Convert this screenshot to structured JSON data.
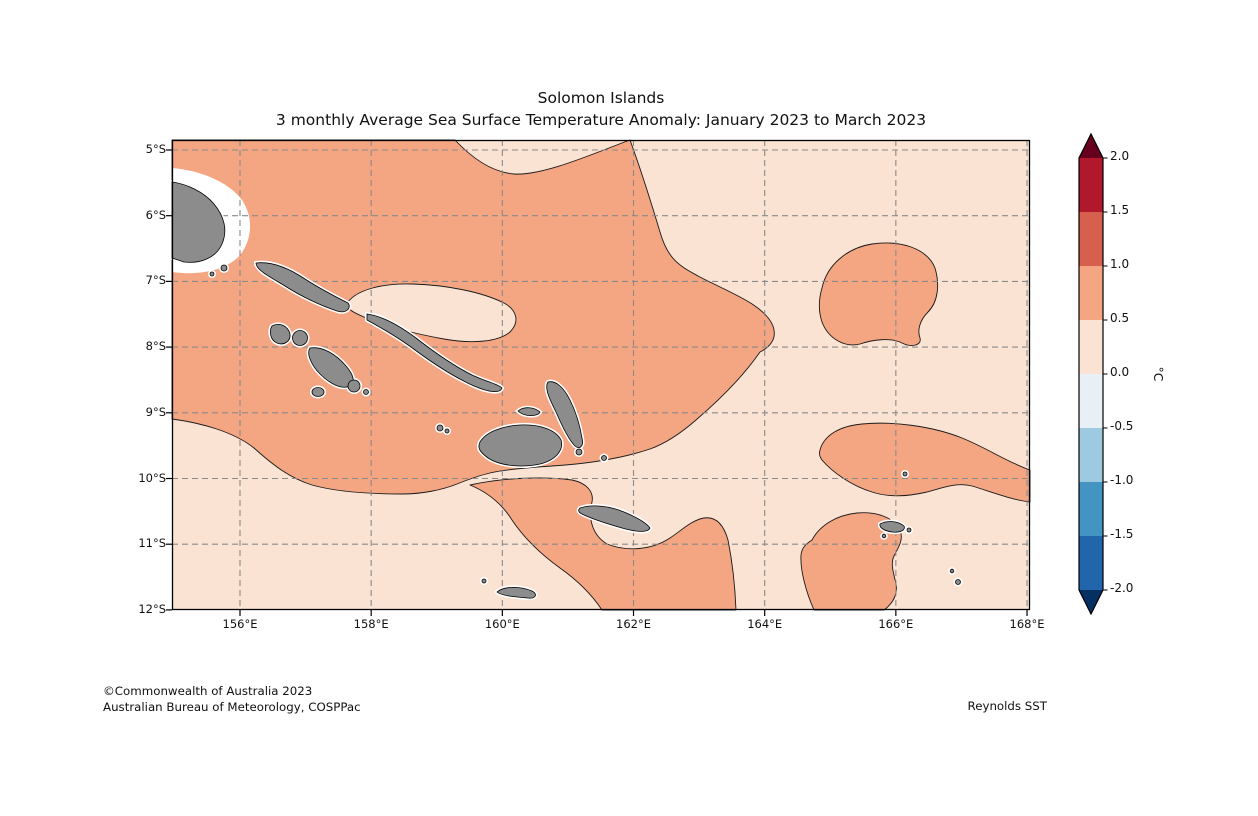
{
  "title": {
    "line1": "Solomon Islands",
    "line2": "3 monthly Average Sea Surface Temperature Anomaly: January 2023 to March 2023"
  },
  "axes": {
    "lat_ticks": [
      "5°S",
      "6°S",
      "7°S",
      "8°S",
      "9°S",
      "10°S",
      "11°S",
      "12°S"
    ],
    "lon_ticks": [
      "156°E",
      "158°E",
      "160°E",
      "162°E",
      "164°E",
      "166°E",
      "168°E"
    ]
  },
  "colorbar": {
    "unit_label": "°C",
    "tick_labels": [
      "2.0",
      "1.5",
      "1.0",
      "0.5",
      "0.0",
      "-0.5",
      "-1.0",
      "-1.5",
      "-2.0"
    ],
    "over_color": "#67001f",
    "block_colors": [
      "#b2182b",
      "#d6604d",
      "#f4a582",
      "#fbe3d3",
      "#e8f0f6",
      "#9ecae1",
      "#4393c3",
      "#2166ac"
    ],
    "under_color": "#053061"
  },
  "map_colors": {
    "sea_light": "#fbe3d3",
    "sea_warm": "#f4a582",
    "land": "#8c8c8c",
    "coast_halo": "#ffffff",
    "contour": "#1a1a1a",
    "grid": "#8a8a8a"
  },
  "footer": {
    "copyright": "©Commonwealth of Australia 2023",
    "agency": "Australian Bureau of Meteorology, COSPPac",
    "source": "Reynolds SST"
  }
}
